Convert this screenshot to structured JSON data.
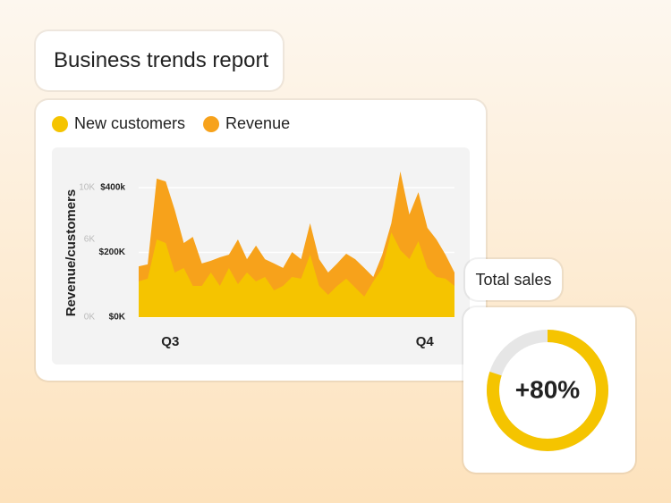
{
  "header": {
    "title": "Business trends report"
  },
  "chart_data": [
    {
      "type": "area",
      "y_label": "Revenue/customers",
      "x": [
        0,
        1,
        2,
        3,
        4,
        5,
        6,
        7,
        8,
        9,
        10,
        11,
        12,
        13,
        14,
        15,
        16,
        17,
        18,
        19,
        20,
        21,
        22,
        23,
        24,
        25,
        26,
        27,
        28,
        29,
        30,
        31,
        32,
        33,
        34,
        35
      ],
      "xlim": [
        0,
        35
      ],
      "xticks": [
        {
          "value": 3.5,
          "label": "Q3"
        },
        {
          "value": 31.7,
          "label": "Q4"
        }
      ],
      "ylim": [
        0,
        400000
      ],
      "yticks": [
        {
          "value": 0,
          "label": "$0K"
        },
        {
          "value": 200000,
          "label": "$200K"
        },
        {
          "value": 400000,
          "label": "$400k"
        }
      ],
      "y2lim": [
        0,
        10000
      ],
      "y2ticks": [
        {
          "value": 0,
          "label": "0K"
        },
        {
          "value": 6000,
          "label": "6K"
        },
        {
          "value": 10000,
          "label": "10K"
        }
      ],
      "grid": true,
      "series": [
        {
          "name": "New customers",
          "color": "#f5c400",
          "axis": "y2",
          "values": [
            2760,
            2970,
            6000,
            5720,
            3450,
            3790,
            2410,
            2410,
            3450,
            2410,
            3790,
            2550,
            3450,
            2760,
            3100,
            2070,
            2410,
            3100,
            2970,
            4830,
            2410,
            1720,
            2410,
            2970,
            2280,
            1590,
            2760,
            3790,
            6550,
            5170,
            4480,
            5860,
            3790,
            3100,
            2970,
            2410
          ]
        },
        {
          "name": "Revenue",
          "color": "#f7a21b",
          "values": [
            157000,
            163000,
            428000,
            419000,
            331000,
            229000,
            248000,
            166000,
            174000,
            185000,
            193000,
            240000,
            179000,
            221000,
            179000,
            166000,
            152000,
            201000,
            179000,
            290000,
            179000,
            138000,
            166000,
            196000,
            179000,
            152000,
            124000,
            193000,
            290000,
            450000,
            317000,
            386000,
            276000,
            240000,
            193000,
            138000
          ]
        }
      ]
    },
    {
      "type": "donut",
      "title": "Total sales",
      "values": [
        80
      ],
      "value_labels": [
        "+80%"
      ],
      "color": "#f5c400",
      "track_color": "#e6e6e6"
    }
  ]
}
